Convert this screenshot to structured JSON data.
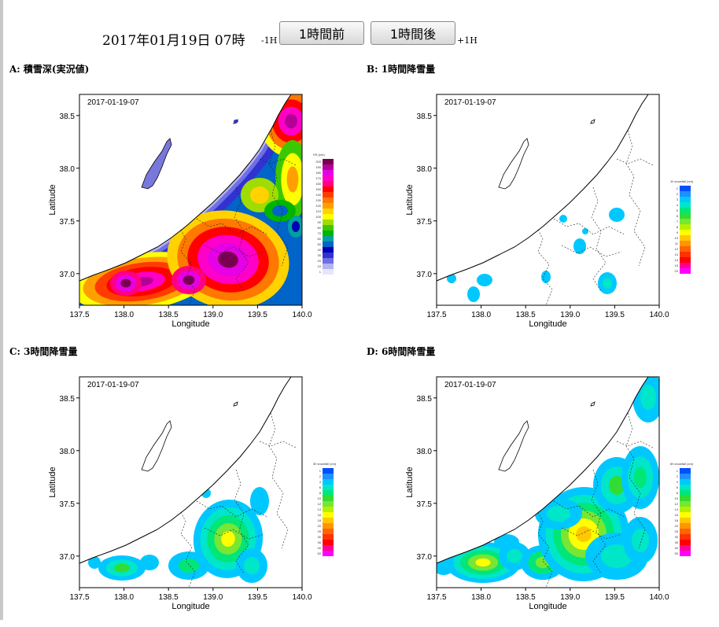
{
  "header": {
    "datetime": "2017年01月19日  07時",
    "minus_label": "-1H",
    "prev_button": "1時間前",
    "next_button": "1時間後",
    "plus_label": "+1H"
  },
  "panels": [
    {
      "title": "A: 積雪深(実況値)",
      "timestamp": "2017-01-19-07",
      "colorbar_title": "HS (cm)",
      "colorbar_ticks": [
        "200",
        "190",
        "180",
        "170",
        "160",
        "150",
        "140",
        "130",
        "120",
        "110",
        "100",
        "90",
        "80",
        "70",
        "60",
        "50",
        "40",
        "30",
        "20",
        "10",
        "1"
      ]
    },
    {
      "title": "B: 1時間降雪量",
      "timestamp": "2017-01-19-07",
      "colorbar_title": "1h snowfall (cm)",
      "colorbar_ticks": [
        "1",
        "2",
        "3",
        "4",
        "5",
        "6",
        "7",
        "8",
        "9",
        "10",
        "11",
        "12",
        "13",
        "14",
        "15",
        "20"
      ]
    },
    {
      "title": "C: 3時間降雪量",
      "timestamp": "2017-01-19-07",
      "colorbar_title": "3h snowfall (cm)",
      "colorbar_ticks": [
        "1",
        "2",
        "4",
        "6",
        "8",
        "10",
        "12",
        "14",
        "16",
        "18",
        "20",
        "25",
        "30",
        "35",
        "40",
        "50"
      ]
    },
    {
      "title": "D: 6時間降雪量",
      "timestamp": "2017-01-19-07",
      "colorbar_title": "6h snowfall (cm)",
      "colorbar_ticks": [
        "1",
        "2",
        "4",
        "6",
        "8",
        "10",
        "12",
        "14",
        "16",
        "18",
        "20",
        "25",
        "30",
        "35",
        "40",
        "50"
      ]
    }
  ],
  "axes": {
    "xlabel": "Longitude",
    "ylabel": "Latitude",
    "xticks": [
      "137.5",
      "138.0",
      "138.5",
      "139.0",
      "139.5",
      "140.0"
    ],
    "yticks": [
      "37.0",
      "37.5",
      "38.0",
      "38.5"
    ]
  },
  "colors": {
    "snowdepth_scale": [
      "#e6e6fa",
      "#b4b4f0",
      "#6e6ee6",
      "#3232d2",
      "#0000b4",
      "#0064c8",
      "#00a0a0",
      "#00b400",
      "#3cc800",
      "#a0dc00",
      "#ffff00",
      "#ffd200",
      "#ffa000",
      "#ff7800",
      "#ff3c00",
      "#ff0000",
      "#ff0080",
      "#ff00c8",
      "#e600e6",
      "#b40096",
      "#780050"
    ],
    "snowfall_scale": [
      "#0050ff",
      "#1e90ff",
      "#00c8ff",
      "#00e6c8",
      "#00e678",
      "#32dc32",
      "#78e632",
      "#b4f000",
      "#ffff00",
      "#ffc800",
      "#ff9600",
      "#ff6400",
      "#ff3200",
      "#ff0000",
      "#ff0096",
      "#ff00ff"
    ]
  }
}
